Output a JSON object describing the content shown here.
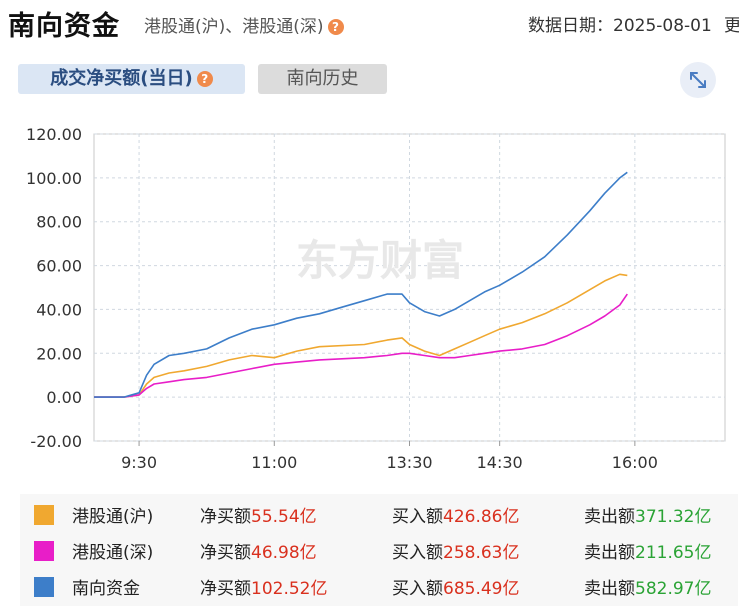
{
  "header": {
    "title": "南向资金",
    "subtitle": "港股通(沪)、港股通(深)",
    "date_label": "数据日期：2025-08-01",
    "more_text": "更"
  },
  "tabs": [
    {
      "label": "成交净买额(当日)",
      "active": true
    },
    {
      "label": "南向历史",
      "active": false
    }
  ],
  "watermark": "东方财富",
  "icons": {
    "help": "help-icon",
    "expand": "expand-icon"
  },
  "chart_data": {
    "type": "line",
    "xticks": [
      "9:30",
      "11:00",
      "13:30",
      "14:30",
      "16:00"
    ],
    "yticks": [
      "120.00",
      "100.00",
      "80.00",
      "60.00",
      "40.00",
      "20.00",
      "0.00",
      "-20.00"
    ],
    "ylim": [
      -20,
      120
    ],
    "x_range_minutes": [
      -30,
      390
    ],
    "xtick_positions_minutes": [
      0,
      90,
      180,
      240,
      330
    ],
    "grid": true,
    "series": [
      {
        "name": "港股通(沪)",
        "color": "#f0a830",
        "x": [
          -30,
          -10,
          0,
          5,
          10,
          20,
          30,
          45,
          60,
          75,
          90,
          105,
          120,
          150,
          165,
          175,
          180,
          190,
          200,
          210,
          220,
          230,
          240,
          255,
          270,
          285,
          300,
          310,
          320,
          325
        ],
        "y": [
          0,
          0,
          1,
          6,
          9,
          11,
          12,
          14,
          17,
          19,
          18,
          21,
          23,
          24,
          26,
          27,
          24,
          21,
          19,
          22,
          25,
          28,
          31,
          34,
          38,
          43,
          49,
          53,
          56,
          55.54
        ]
      },
      {
        "name": "港股通(深)",
        "color": "#e81ec8",
        "x": [
          -30,
          -10,
          0,
          5,
          10,
          20,
          30,
          45,
          60,
          75,
          90,
          105,
          120,
          150,
          165,
          175,
          180,
          190,
          200,
          210,
          220,
          230,
          240,
          255,
          270,
          285,
          300,
          310,
          320,
          325
        ],
        "y": [
          0,
          0,
          1,
          4,
          6,
          7,
          8,
          9,
          11,
          13,
          15,
          16,
          17,
          18,
          19,
          20,
          20,
          19,
          18,
          18,
          19,
          20,
          21,
          22,
          24,
          28,
          33,
          37,
          42,
          46.98
        ]
      },
      {
        "name": "南向资金",
        "color": "#3d7ec9",
        "x": [
          -30,
          -10,
          0,
          5,
          10,
          20,
          30,
          45,
          60,
          75,
          90,
          105,
          120,
          135,
          150,
          165,
          175,
          180,
          190,
          200,
          210,
          220,
          230,
          240,
          255,
          270,
          285,
          300,
          310,
          320,
          325
        ],
        "y": [
          0,
          0,
          2,
          10,
          15,
          19,
          20,
          22,
          27,
          31,
          33,
          36,
          38,
          41,
          44,
          47,
          47,
          43,
          39,
          37,
          40,
          44,
          48,
          51,
          57,
          64,
          74,
          85,
          93,
          100,
          102.52
        ]
      }
    ]
  },
  "legend": [
    {
      "name": "港股通(沪)",
      "color": "#f0a830",
      "net_label": "净买额",
      "net_value": "55.54亿",
      "buy_label": "买入额",
      "buy_value": "426.86亿",
      "sell_label": "卖出额",
      "sell_value": "371.32亿"
    },
    {
      "name": "港股通(深)",
      "color": "#e81ec8",
      "net_label": "净买额",
      "net_value": "46.98亿",
      "buy_label": "买入额",
      "buy_value": "258.63亿",
      "sell_label": "卖出额",
      "sell_value": "211.65亿"
    },
    {
      "name": "南向资金",
      "color": "#3d7ec9",
      "net_label": "净买额",
      "net_value": "102.52亿",
      "buy_label": "买入额",
      "buy_value": "685.49亿",
      "sell_label": "卖出额",
      "sell_value": "582.97亿"
    }
  ]
}
